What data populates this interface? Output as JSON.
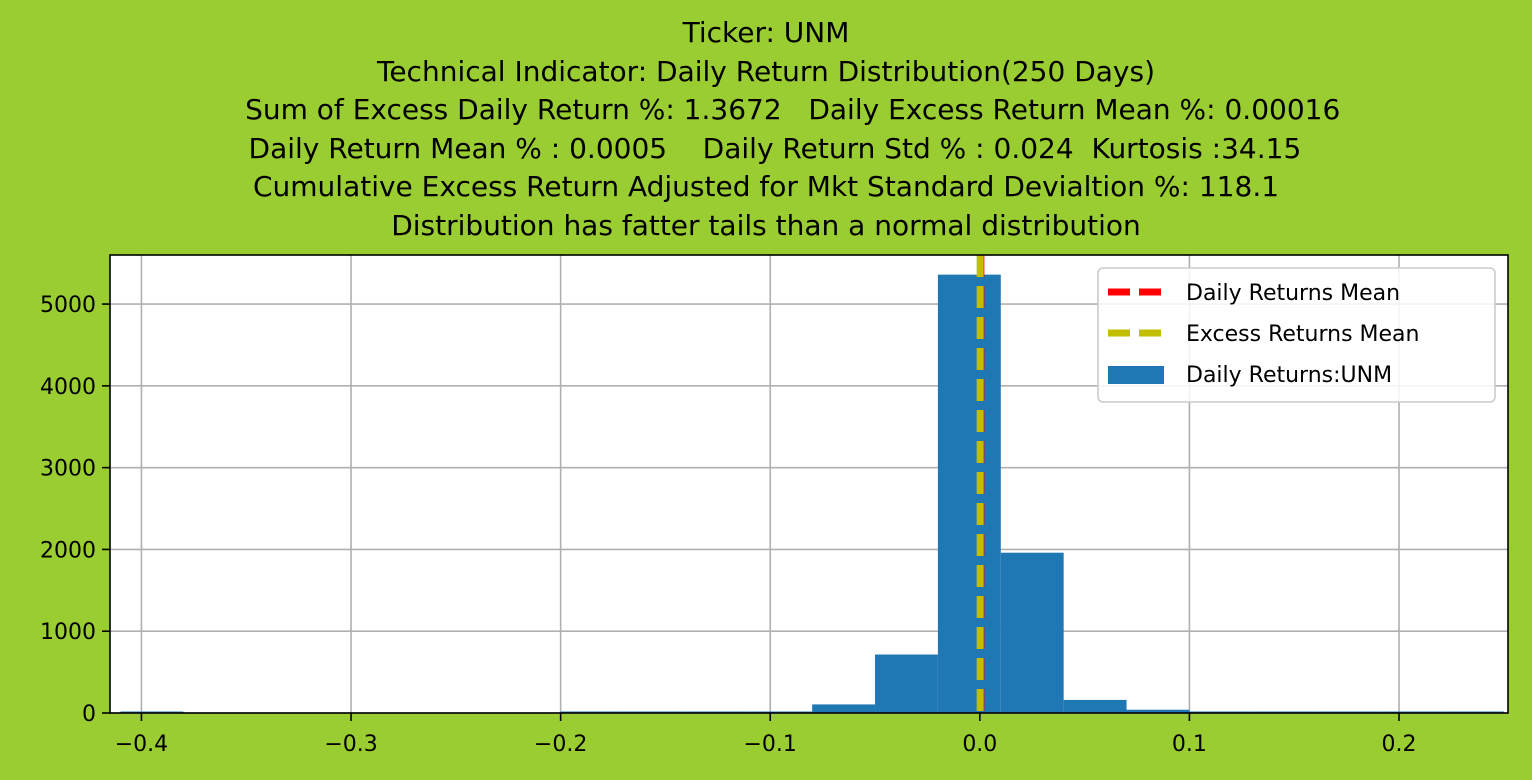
{
  "figure": {
    "background": "#9acd32"
  },
  "title_lines": [
    "Ticker: UNM",
    "Technical Indicator: Daily Return Distribution(250 Days)",
    "      Sum of Excess Daily Return %: 1.3672   Daily Excess Return Mean %: 0.00016",
    "  Daily Return Mean % : 0.0005    Daily Return Std % : 0.024  Kurtosis :34.15",
    "Cumulative Excess Return Adjusted for Mkt Standard Devialtion %: 118.1",
    "Distribution has fatter tails than a normal distribution"
  ],
  "chart_data": {
    "type": "bar",
    "subtype": "histogram",
    "xlim": [
      -0.415,
      0.252
    ],
    "ylim": [
      0,
      5600
    ],
    "grid": true,
    "legend_position": "top-right",
    "x_ticks": [
      {
        "value": -0.4,
        "label": "−0.4"
      },
      {
        "value": -0.3,
        "label": "−0.3"
      },
      {
        "value": -0.2,
        "label": "−0.2"
      },
      {
        "value": -0.1,
        "label": "−0.1"
      },
      {
        "value": 0.0,
        "label": "0.0"
      },
      {
        "value": 0.1,
        "label": "0.1"
      },
      {
        "value": 0.2,
        "label": "0.2"
      }
    ],
    "y_ticks": [
      {
        "value": 0,
        "label": "0"
      },
      {
        "value": 1000,
        "label": "1000"
      },
      {
        "value": 2000,
        "label": "2000"
      },
      {
        "value": 3000,
        "label": "3000"
      },
      {
        "value": 4000,
        "label": "4000"
      },
      {
        "value": 5000,
        "label": "5000"
      }
    ],
    "bin_edges": [
      -0.41,
      -0.38,
      -0.35,
      -0.32,
      -0.29,
      -0.26,
      -0.23,
      -0.2,
      -0.17,
      -0.14,
      -0.11,
      -0.08,
      -0.05,
      -0.02,
      0.01,
      0.04,
      0.07,
      0.1,
      0.13,
      0.16,
      0.19,
      0.22,
      0.25
    ],
    "counts": [
      1,
      0,
      0,
      0,
      0,
      0,
      0,
      1,
      1,
      3,
      18,
      105,
      715,
      5360,
      1960,
      160,
      40,
      6,
      3,
      1,
      1,
      1
    ],
    "series": [
      {
        "name": "Daily Returns:UNM",
        "type": "histogram",
        "color": "#1f77b4"
      },
      {
        "name": "Daily Returns Mean",
        "type": "vline",
        "value": 0.0005,
        "color": "#ff0000",
        "style": "dashed"
      },
      {
        "name": "Excess Returns Mean",
        "type": "vline",
        "value": 0.00016,
        "color": "#bfbf00",
        "style": "dashed"
      }
    ]
  }
}
